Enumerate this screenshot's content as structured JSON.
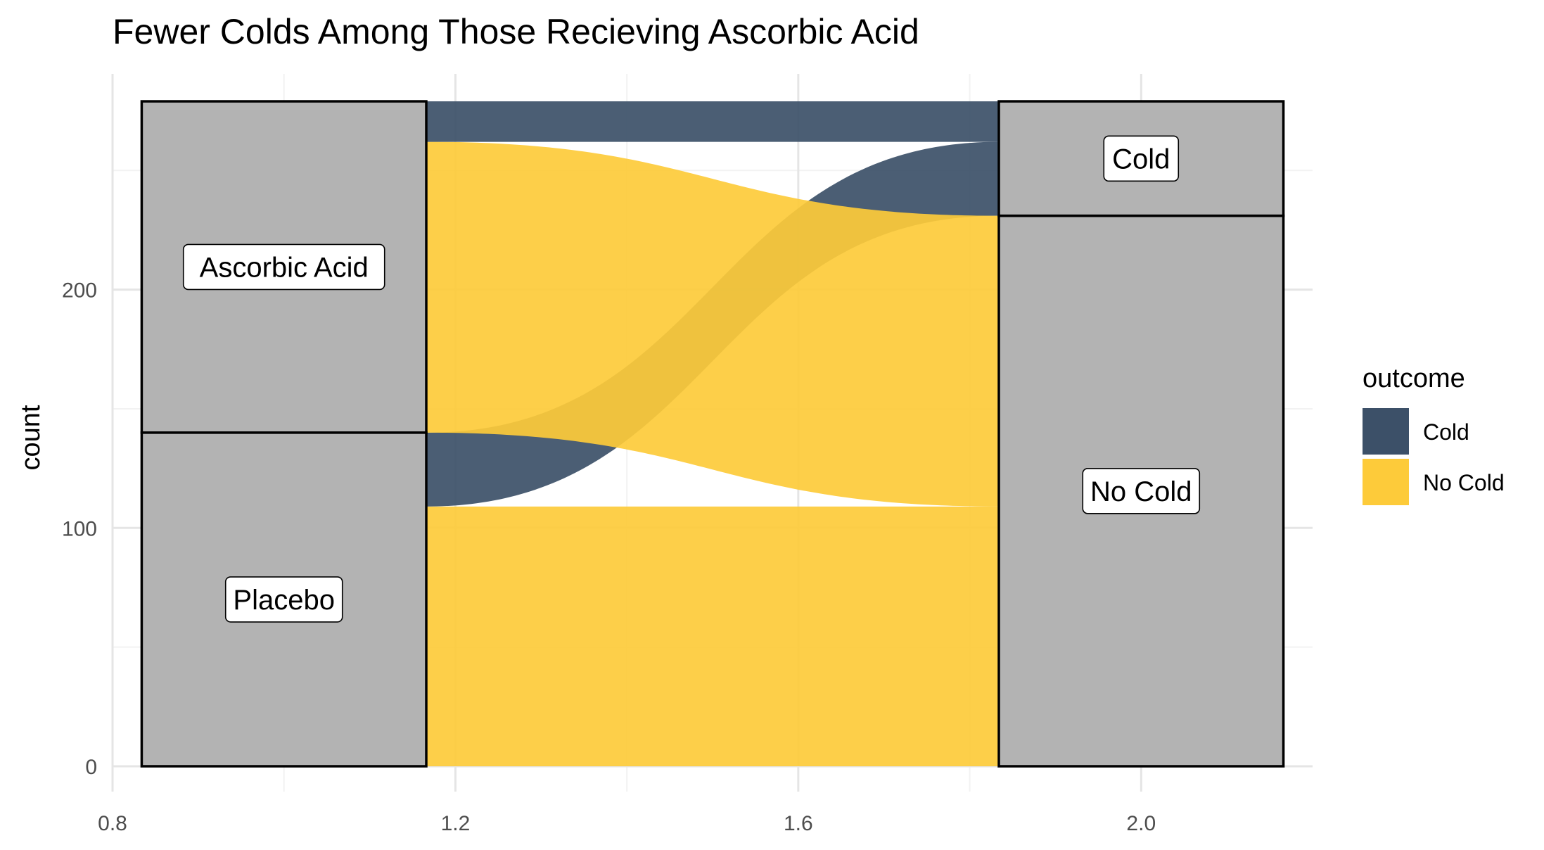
{
  "chart_data": {
    "type": "alluvial",
    "title": "Fewer Colds Among Those Recieving Ascorbic Acid",
    "xlabel": "",
    "ylabel": "count",
    "xlim": [
      0.8,
      2.2
    ],
    "ylim": [
      0,
      280
    ],
    "x_ticks": [
      0.8,
      1.2,
      1.6,
      2.0
    ],
    "x_tick_labels": [
      "0.8",
      "1.2",
      "1.6",
      "2.0"
    ],
    "y_ticks": [
      0,
      100,
      200
    ],
    "y_tick_labels": [
      "0",
      "100",
      "200"
    ],
    "grid": true,
    "axes": [
      {
        "position": 1,
        "strata": [
          {
            "label": "Placebo",
            "count": 140
          },
          {
            "label": "Ascorbic Acid",
            "count": 139
          }
        ]
      },
      {
        "position": 2,
        "strata": [
          {
            "label": "No Cold",
            "count": 231
          },
          {
            "label": "Cold",
            "count": 48
          }
        ]
      }
    ],
    "flows": [
      {
        "from": "Placebo",
        "to": "No Cold",
        "outcome": "No Cold",
        "count": 109
      },
      {
        "from": "Placebo",
        "to": "Cold",
        "outcome": "Cold",
        "count": 31
      },
      {
        "from": "Ascorbic Acid",
        "to": "No Cold",
        "outcome": "No Cold",
        "count": 122
      },
      {
        "from": "Ascorbic Acid",
        "to": "Cold",
        "outcome": "Cold",
        "count": 17
      }
    ],
    "legend": {
      "title": "outcome",
      "placement": "right",
      "entries": [
        {
          "label": "Cold",
          "color": "#3c5068"
        },
        {
          "label": "No Cold",
          "color": "#fdcb3a"
        }
      ]
    }
  }
}
